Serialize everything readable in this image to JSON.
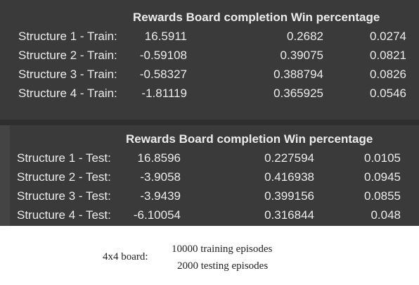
{
  "columns": [
    "Rewards",
    "Board completion",
    "Win percentage"
  ],
  "train": {
    "rows": [
      {
        "label": "Structure 1 - Train:",
        "rewards": "16.5911",
        "completion": "0.2682",
        "win": "0.0274"
      },
      {
        "label": "Structure 2 - Train:",
        "rewards": "-0.59108",
        "completion": "0.39075",
        "win": "0.0821"
      },
      {
        "label": "Structure 3 - Train:",
        "rewards": "-0.58327",
        "completion": "0.388794",
        "win": "0.0826"
      },
      {
        "label": "Structure 4 - Train:",
        "rewards": "-1.81119",
        "completion": "0.365925",
        "win": "0.0546"
      }
    ]
  },
  "test": {
    "rows": [
      {
        "label": "Structure 1 - Test:",
        "rewards": "16.8596",
        "completion": "0.227594",
        "win": "0.0105"
      },
      {
        "label": "Structure 2 - Test:",
        "rewards": "-3.9058",
        "completion": "0.416938",
        "win": "0.0945"
      },
      {
        "label": "Structure 3 - Test:",
        "rewards": "-3.9439",
        "completion": "0.399156",
        "win": "0.0855"
      },
      {
        "label": "Structure 4 - Test:",
        "rewards": "-6.10054",
        "completion": "0.316844",
        "win": "0.048"
      }
    ]
  },
  "caption": {
    "board": "4x4 board:",
    "training": "10000 training episodes",
    "testing": "2000 testing episodes"
  },
  "colors": {
    "panel_background": "#3a3a3a",
    "panel_text": "#ececec",
    "page_background": "#ffffff"
  }
}
